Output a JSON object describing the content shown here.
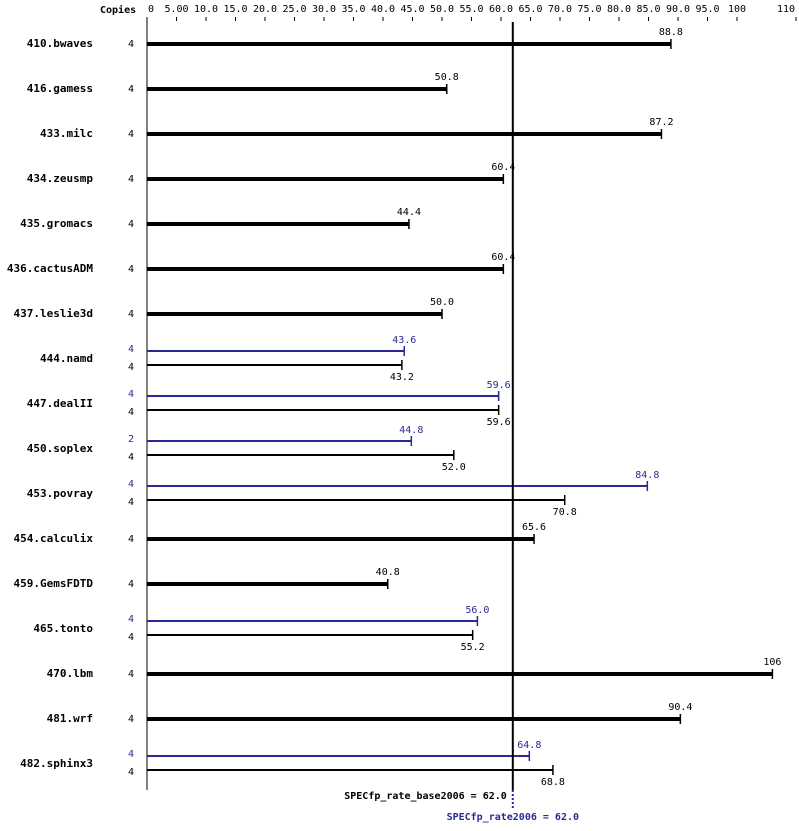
{
  "chart_data": {
    "type": "bar",
    "orientation": "horizontal",
    "copies_label": "Copies",
    "categories": [
      "410.bwaves",
      "416.gamess",
      "433.milc",
      "434.zeusmp",
      "435.gromacs",
      "436.cactusADM",
      "437.leslie3d",
      "444.namd",
      "447.dealII",
      "450.soplex",
      "453.povray",
      "454.calculix",
      "459.GemsFDTD",
      "465.tonto",
      "470.lbm",
      "481.wrf",
      "482.sphinx3"
    ],
    "xlim": [
      0,
      110
    ],
    "xticks": [
      0,
      {
        "value": 5,
        "label": "5.00"
      },
      {
        "value": 10,
        "label": "10.0"
      },
      {
        "value": 15,
        "label": "15.0"
      },
      {
        "value": 20,
        "label": "20.0"
      },
      {
        "value": 25,
        "label": "25.0"
      },
      {
        "value": 30,
        "label": "30.0"
      },
      {
        "value": 35,
        "label": "35.0"
      },
      {
        "value": 40,
        "label": "40.0"
      },
      {
        "value": 45,
        "label": "45.0"
      },
      {
        "value": 50,
        "label": "50.0"
      },
      {
        "value": 55,
        "label": "55.0"
      },
      {
        "value": 60,
        "label": "60.0"
      },
      {
        "value": 65,
        "label": "65.0"
      },
      {
        "value": 70,
        "label": "70.0"
      },
      {
        "value": 75,
        "label": "75.0"
      },
      {
        "value": 80,
        "label": "80.0"
      },
      {
        "value": 85,
        "label": "85.0"
      },
      {
        "value": 90,
        "label": "90.0"
      },
      {
        "value": 95,
        "label": "95.0"
      },
      100,
      110
    ],
    "series": [
      {
        "color": "#000000",
        "copies": [
          4,
          4,
          4,
          4,
          4,
          4,
          4,
          4,
          4,
          4,
          4,
          4,
          4,
          4,
          4,
          4,
          4
        ],
        "values": [
          88.8,
          50.8,
          87.2,
          60.4,
          44.4,
          60.4,
          50.0,
          43.2,
          59.6,
          52.0,
          70.8,
          65.6,
          40.8,
          55.2,
          106,
          90.4,
          68.8
        ],
        "value_labels": [
          "88.8",
          "50.8",
          "87.2",
          "60.4",
          "44.4",
          "60.4",
          "50.0",
          "43.2",
          "59.6",
          "52.0",
          "70.8",
          "65.6",
          "40.8",
          "55.2",
          "106",
          "90.4",
          "68.8"
        ]
      },
      {
        "color": "#2a2a96",
        "copies": [
          null,
          null,
          null,
          null,
          null,
          null,
          null,
          4,
          4,
          2,
          4,
          null,
          null,
          4,
          null,
          null,
          4
        ],
        "values": [
          null,
          null,
          null,
          null,
          null,
          null,
          null,
          43.6,
          59.6,
          44.8,
          84.8,
          null,
          null,
          56.0,
          null,
          null,
          64.8
        ],
        "value_labels": [
          null,
          null,
          null,
          null,
          null,
          null,
          null,
          "43.6",
          "59.6",
          "44.8",
          "84.8",
          null,
          null,
          "56.0",
          null,
          null,
          "64.8"
        ]
      }
    ],
    "references": [
      {
        "text": "SPECfp_rate_base2006 = 62.0",
        "value": 62.0,
        "color": "#000000"
      },
      {
        "text": "SPECfp_rate2006 = 62.0",
        "value": 62.0,
        "color": "#2a2a96"
      }
    ]
  }
}
